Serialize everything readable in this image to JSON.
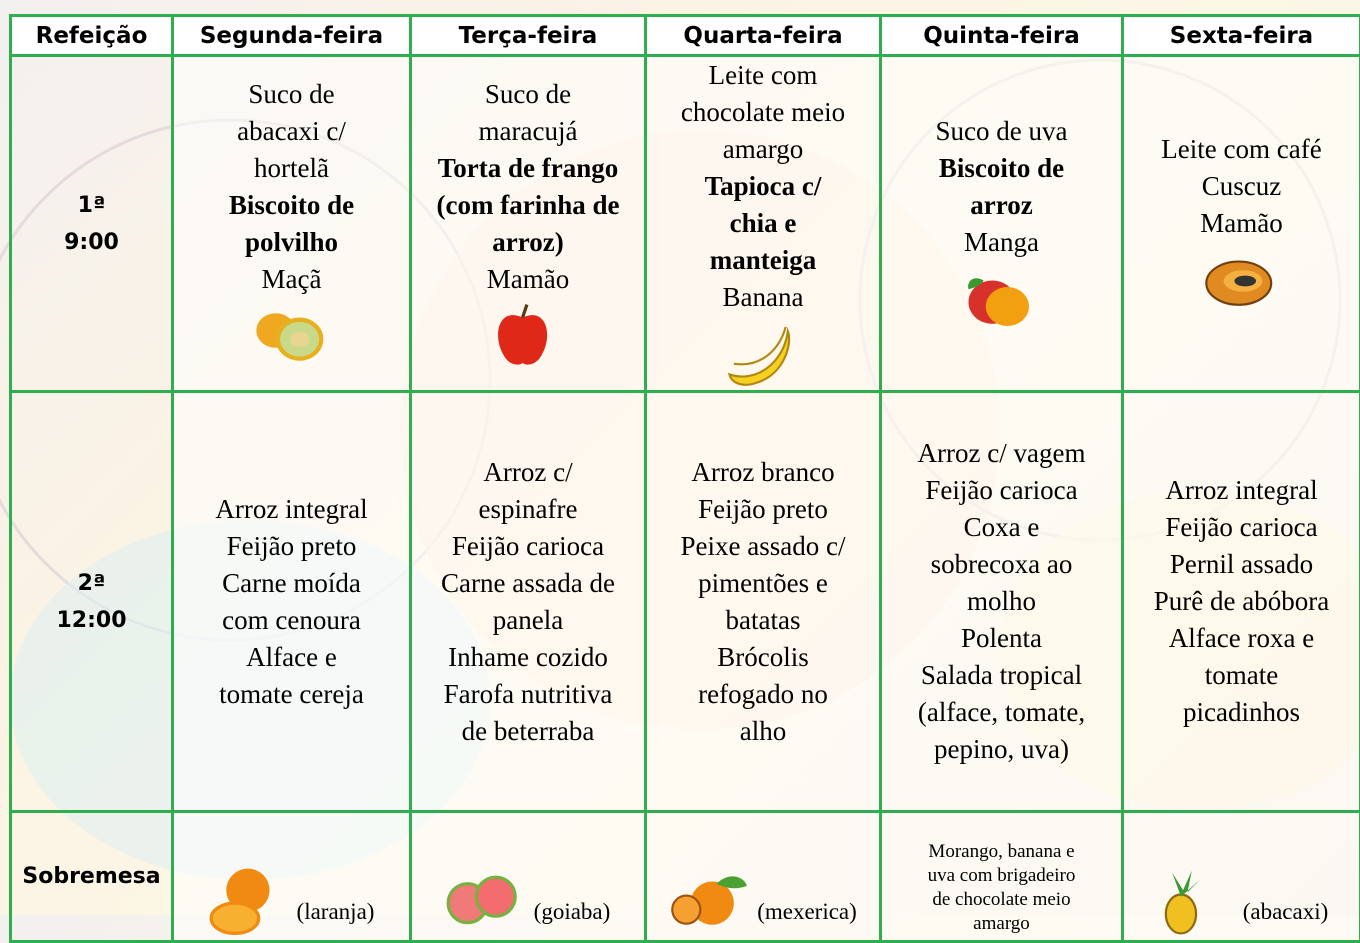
{
  "table": {
    "header": [
      "Refeição",
      "Segunda-feira",
      "Terça-feira",
      "Quarta-feira",
      "Quinta-feira",
      "Sexta-feira"
    ],
    "rows": [
      {
        "label": [
          "1ª",
          "9:00"
        ],
        "cells": [
          {
            "lines": [
              {
                "text": "Suco de"
              },
              {
                "text": "abacaxi c/"
              },
              {
                "text": "hortelã"
              },
              {
                "text": "Biscoito de",
                "bold": true
              },
              {
                "text": "polvilho",
                "bold": true
              },
              {
                "text": "Maçã"
              }
            ]
          },
          {
            "lines": [
              {
                "text": "Suco de"
              },
              {
                "text": "maracujá"
              },
              {
                "text": "Torta de frango",
                "bold": true
              },
              {
                "text": "(com farinha de",
                "bold": true
              },
              {
                "text": "arroz)",
                "bold": true
              },
              {
                "text": "Mamão"
              }
            ]
          },
          {
            "lines": [
              {
                "text": "Leite com"
              },
              {
                "text": "chocolate meio"
              },
              {
                "text": "amargo"
              },
              {
                "text": "Tapioca c/",
                "bold": true
              },
              {
                "text": "chia e",
                "bold": true
              },
              {
                "text": "manteiga",
                "bold": true
              },
              {
                "text": "Banana"
              }
            ]
          },
          {
            "lines": [
              {
                "text": "Suco de uva"
              },
              {
                "text": "Biscoito de",
                "bold": true
              },
              {
                "text": "arroz",
                "bold": true
              },
              {
                "text": "Manga"
              }
            ]
          },
          {
            "lines": [
              {
                "text": "Leite com café"
              },
              {
                "text": "Cuscuz"
              },
              {
                "text": "Mamão"
              }
            ]
          }
        ]
      },
      {
        "label": [
          "2ª",
          "12:00"
        ],
        "cells": [
          {
            "lines": [
              {
                "text": "Arroz integral"
              },
              {
                "text": "Feijão preto"
              },
              {
                "text": "Carne moída"
              },
              {
                "text": "com cenoura"
              },
              {
                "text": "Alface e"
              },
              {
                "text": "tomate cereja"
              }
            ]
          },
          {
            "lines": [
              {
                "text": "Arroz c/"
              },
              {
                "text": "espinafre"
              },
              {
                "text": "Feijão carioca"
              },
              {
                "text": "Carne assada de"
              },
              {
                "text": "panela"
              },
              {
                "text": "Inhame cozido"
              },
              {
                "text": "Farofa nutritiva"
              },
              {
                "text": "de beterraba"
              }
            ]
          },
          {
            "lines": [
              {
                "text": "Arroz branco"
              },
              {
                "text": "Feijão preto"
              },
              {
                "text": "Peixe assado c/"
              },
              {
                "text": "pimentões e"
              },
              {
                "text": "batatas"
              },
              {
                "text": "Brócolis"
              },
              {
                "text": "refogado no"
              },
              {
                "text": "alho"
              }
            ]
          },
          {
            "lines": [
              {
                "text": "Arroz c/ vagem"
              },
              {
                "text": "Feijão carioca"
              },
              {
                "text": "Coxa e"
              },
              {
                "text": "sobrecoxa ao"
              },
              {
                "text": "molho"
              },
              {
                "text": "Polenta"
              },
              {
                "text": "Salada tropical"
              },
              {
                "text": "(alface, tomate,"
              },
              {
                "text": "pepino, uva)"
              }
            ]
          },
          {
            "lines": [
              {
                "text": "Arroz integral"
              },
              {
                "text": "Feijão carioca"
              },
              {
                "text": "Pernil assado"
              },
              {
                "text": "Purê de abóbora"
              },
              {
                "text": "Alface roxa e"
              },
              {
                "text": "tomate"
              },
              {
                "text": "picadinhos"
              }
            ]
          }
        ]
      },
      {
        "label": [
          "Sobremesa"
        ],
        "cells": [
          {
            "lines": [
              {
                "text": "(laranja)"
              }
            ]
          },
          {
            "lines": [
              {
                "text": "(goiaba)"
              }
            ]
          },
          {
            "lines": [
              {
                "text": "(mexerica)"
              }
            ]
          },
          {
            "lines": [
              {
                "text": "Morango, banana e"
              },
              {
                "text": "uva com brigadeiro"
              },
              {
                "text": "de chocolate meio"
              },
              {
                "text": "amargo"
              }
            ],
            "small": true
          },
          {
            "lines": [
              {
                "text": "(abacaxi)"
              }
            ]
          }
        ]
      }
    ]
  }
}
